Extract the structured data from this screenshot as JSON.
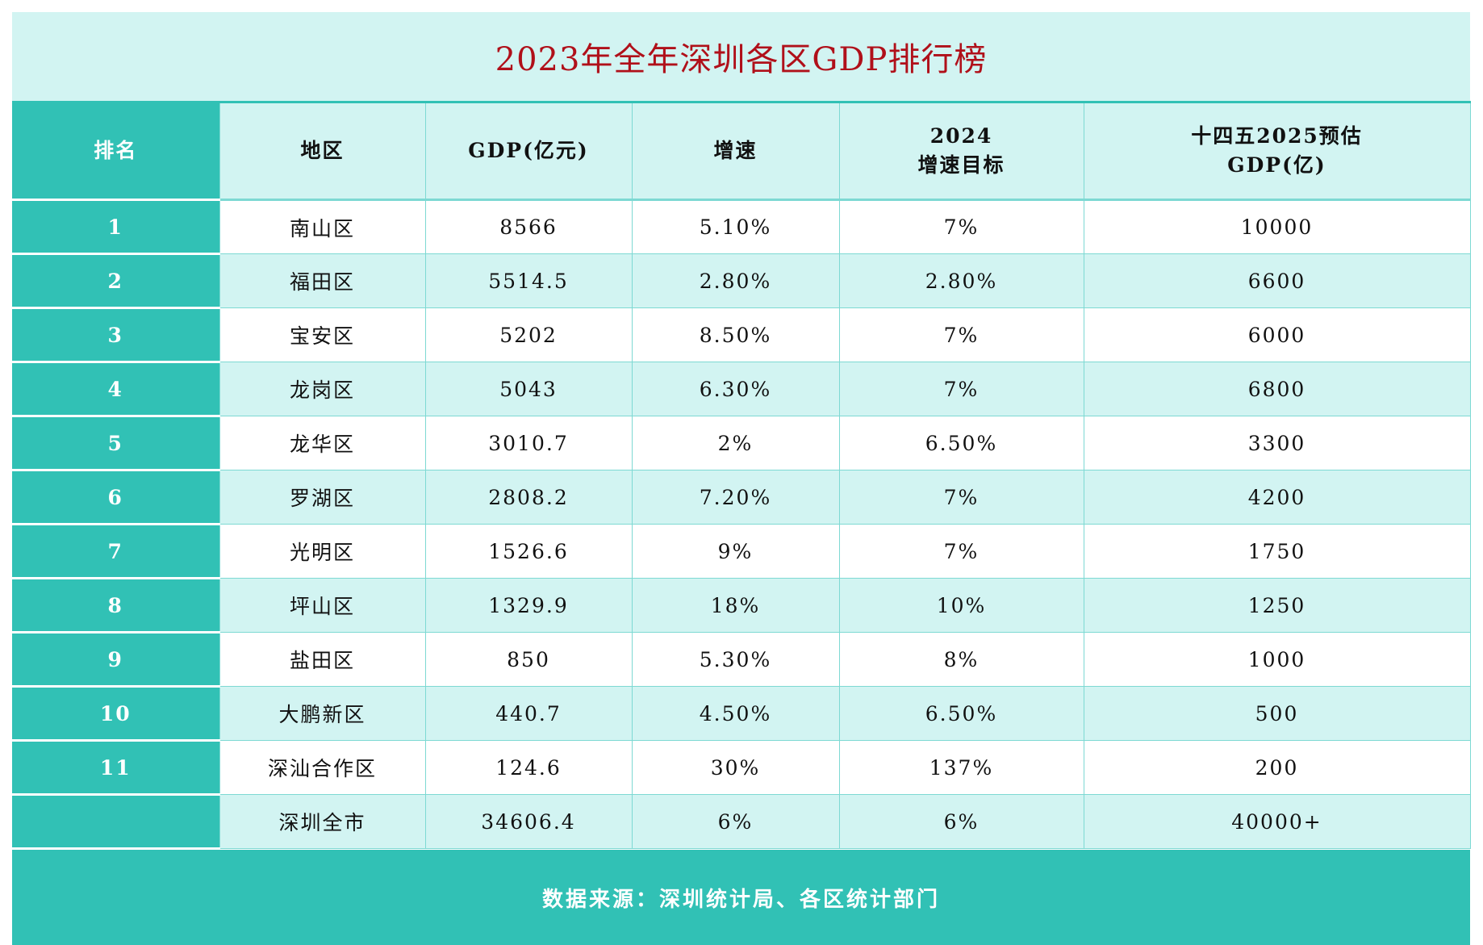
{
  "title": "2023年全年深圳各区GDP排行榜",
  "headers": [
    "排名",
    "地区",
    "GDP(亿元)",
    "增速",
    "2024\n增速目标",
    "十四五2025预估\nGDP(亿)"
  ],
  "rows": [
    [
      "1",
      "南山区",
      "8566",
      "5.10%",
      "7%",
      "10000"
    ],
    [
      "2",
      "福田区",
      "5514.5",
      "2.80%",
      "2.80%",
      "6600"
    ],
    [
      "3",
      "宝安区",
      "5202",
      "8.50%",
      "7%",
      "6000"
    ],
    [
      "4",
      "龙岗区",
      "5043",
      "6.30%",
      "7%",
      "6800"
    ],
    [
      "5",
      "龙华区",
      "3010.7",
      "2%",
      "6.50%",
      "3300"
    ],
    [
      "6",
      "罗湖区",
      "2808.2",
      "7.20%",
      "7%",
      "4200"
    ],
    [
      "7",
      "光明区",
      "1526.6",
      "9%",
      "7%",
      "1750"
    ],
    [
      "8",
      "坪山区",
      "1329.9",
      "18%",
      "10%",
      "1250"
    ],
    [
      "9",
      "盐田区",
      "850",
      "5.30%",
      "8%",
      "1000"
    ],
    [
      "10",
      "大鹏新区",
      "440.7",
      "4.50%",
      "6.50%",
      "500"
    ],
    [
      "11",
      "深汕合作区",
      "124.6",
      "30%",
      "137%",
      "200"
    ],
    [
      "",
      "深圳全市",
      "34606.4",
      "6%",
      "6%",
      "40000+"
    ]
  ],
  "footer": "数据来源：深圳统计局、各区统计部门",
  "colors": {
    "accent": "#31c1b5",
    "light": "#d2f4f2",
    "title": "#b0101a"
  }
}
